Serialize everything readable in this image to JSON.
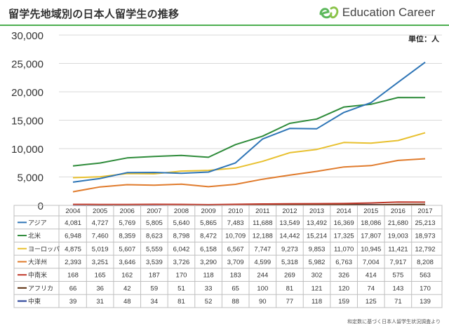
{
  "title": "留学先地域別の日本人留学生の推移",
  "brand": {
    "name": "Education Career",
    "logo_icon": "ec-leaf-logo-icon",
    "logo_color": "#5cb85c"
  },
  "unit_label": "単位：人",
  "footer_note": "和定数に基づく日本人留学生状況調査より",
  "chart_data": {
    "type": "line",
    "title": "留学先地域別の日本人留学生の推移",
    "xlabel": "",
    "ylabel": "",
    "ylim": [
      0,
      30000
    ],
    "yticks": [
      0,
      5000,
      10000,
      15000,
      20000,
      25000,
      30000
    ],
    "ytick_labels": [
      "0",
      "5,000",
      "10,000",
      "15,000",
      "20,000",
      "25,000",
      "30,000"
    ],
    "grid": "horizontal",
    "legend": "data-table-below",
    "x": [
      "2004",
      "2005",
      "2006",
      "2007",
      "2008",
      "2009",
      "2010",
      "2011",
      "2012",
      "2013",
      "2014",
      "2015",
      "2016",
      "2017"
    ],
    "series": [
      {
        "name": "アジア",
        "color": "#2e75b6",
        "values": [
          4081,
          4727,
          5769,
          5805,
          5640,
          5865,
          7483,
          11688,
          13549,
          13492,
          16369,
          18086,
          21680,
          25213
        ],
        "labels": [
          "4,081",
          "4,727",
          "5,769",
          "5,805",
          "5,640",
          "5,865",
          "7,483",
          "11,688",
          "13,549",
          "13,492",
          "16,369",
          "18,086",
          "21,680",
          "25,213"
        ]
      },
      {
        "name": "北米",
        "color": "#2e8b3a",
        "values": [
          6948,
          7460,
          8359,
          8623,
          8798,
          8472,
          10709,
          12188,
          14442,
          15214,
          17325,
          17807,
          19003,
          18973
        ],
        "labels": [
          "6,948",
          "7,460",
          "8,359",
          "8,623",
          "8,798",
          "8,472",
          "10,709",
          "12,188",
          "14,442",
          "15,214",
          "17,325",
          "17,807",
          "19,003",
          "18,973"
        ]
      },
      {
        "name": "ヨーロッパ",
        "color": "#e8c02e",
        "values": [
          4875,
          5019,
          5607,
          5559,
          6042,
          6158,
          6567,
          7747,
          9273,
          9853,
          11070,
          10945,
          11421,
          12792
        ],
        "labels": [
          "4,875",
          "5,019",
          "5,607",
          "5,559",
          "6,042",
          "6,158",
          "6,567",
          "7,747",
          "9,273",
          "9,853",
          "11,070",
          "10,945",
          "11,421",
          "12,792"
        ]
      },
      {
        "name": "大洋州",
        "color": "#e07b2c",
        "values": [
          2393,
          3251,
          3646,
          3539,
          3726,
          3290,
          3709,
          4599,
          5318,
          5982,
          6763,
          7004,
          7917,
          8208
        ],
        "labels": [
          "2,393",
          "3,251",
          "3,646",
          "3,539",
          "3,726",
          "3,290",
          "3,709",
          "4,599",
          "5,318",
          "5,982",
          "6,763",
          "7,004",
          "7,917",
          "8,208"
        ]
      },
      {
        "name": "中南米",
        "color": "#c0392b",
        "values": [
          168,
          165,
          162,
          187,
          170,
          118,
          183,
          244,
          269,
          302,
          326,
          414,
          575,
          563
        ],
        "labels": [
          "168",
          "165",
          "162",
          "187",
          "170",
          "118",
          "183",
          "244",
          "269",
          "302",
          "326",
          "414",
          "575",
          "563"
        ]
      },
      {
        "name": "アフリカ",
        "color": "#5c2e0e",
        "values": [
          66,
          36,
          42,
          59,
          51,
          33,
          65,
          100,
          81,
          121,
          120,
          74,
          143,
          170
        ],
        "labels": [
          "66",
          "36",
          "42",
          "59",
          "51",
          "33",
          "65",
          "100",
          "81",
          "121",
          "120",
          "74",
          "143",
          "170"
        ]
      },
      {
        "name": "中東",
        "color": "#1f3a93",
        "values": [
          39,
          31,
          48,
          34,
          81,
          52,
          88,
          90,
          77,
          118,
          159,
          125,
          71,
          139
        ],
        "labels": [
          "39",
          "31",
          "48",
          "34",
          "81",
          "52",
          "88",
          "90",
          "77",
          "118",
          "159",
          "125",
          "71",
          "139"
        ]
      }
    ]
  }
}
